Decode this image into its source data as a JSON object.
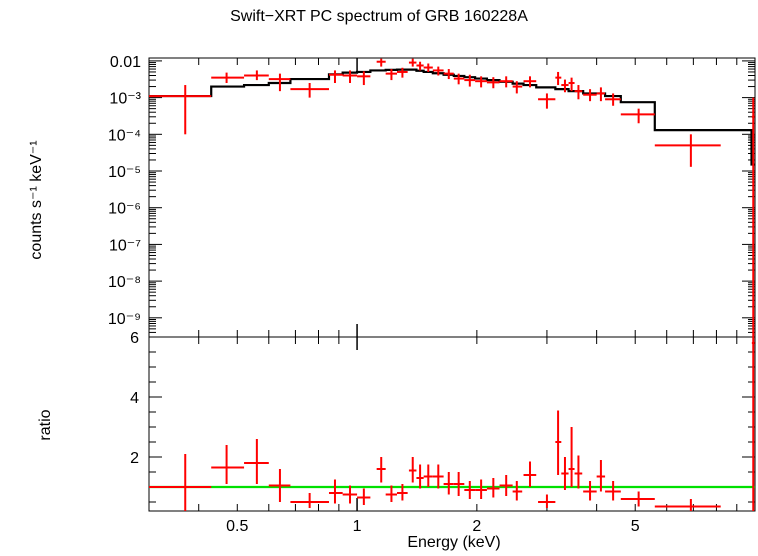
{
  "chart_data": [
    {
      "type": "scatter",
      "title": "Swift−XRT PC spectrum of GRB 160228A",
      "xlabel": "Energy (keV)",
      "ylabel": "counts s⁻¹ keV⁻¹",
      "xscale": "log",
      "yscale": "log",
      "xlim": [
        0.3,
        10
      ],
      "ylim": [
        3e-10,
        0.012
      ],
      "y_tick_labels": [
        {
          "v": 0.01,
          "t": "0.01"
        },
        {
          "v": 0.001,
          "t": "10⁻³"
        },
        {
          "v": 0.0001,
          "t": "10⁻⁴"
        },
        {
          "v": 1e-05,
          "t": "10⁻⁵"
        },
        {
          "v": 1e-06,
          "t": "10⁻⁶"
        },
        {
          "v": 1e-07,
          "t": "10⁻⁷"
        },
        {
          "v": 1e-08,
          "t": "10⁻⁸"
        },
        {
          "v": 1e-09,
          "t": "10⁻⁹"
        }
      ],
      "data_color": "#ff0000",
      "model_color": "#000000",
      "points": [
        {
          "x": 0.37,
          "xlo": 0.3,
          "xhi": 0.43,
          "y": 0.0011,
          "ylo": 0.0001,
          "yhi": 0.0022
        },
        {
          "x": 0.47,
          "xlo": 0.43,
          "xhi": 0.52,
          "y": 0.0035,
          "ylo": 0.0025,
          "yhi": 0.0048
        },
        {
          "x": 0.56,
          "xlo": 0.52,
          "xhi": 0.6,
          "y": 0.004,
          "ylo": 0.003,
          "yhi": 0.0055
        },
        {
          "x": 0.64,
          "xlo": 0.6,
          "xhi": 0.68,
          "y": 0.0032,
          "ylo": 0.0015,
          "yhi": 0.0045
        },
        {
          "x": 0.76,
          "xlo": 0.68,
          "xhi": 0.85,
          "y": 0.0017,
          "ylo": 0.001,
          "yhi": 0.0025
        },
        {
          "x": 0.88,
          "xlo": 0.85,
          "xhi": 0.92,
          "y": 0.0042,
          "ylo": 0.0025,
          "yhi": 0.0055
        },
        {
          "x": 0.96,
          "xlo": 0.92,
          "xhi": 1.0,
          "y": 0.004,
          "ylo": 0.0025,
          "yhi": 0.0055
        },
        {
          "x": 1.04,
          "xlo": 1.0,
          "xhi": 1.08,
          "y": 0.0038,
          "ylo": 0.0022,
          "yhi": 0.0052
        },
        {
          "x": 1.15,
          "xlo": 1.12,
          "xhi": 1.18,
          "y": 0.0095,
          "ylo": 0.007,
          "yhi": 0.0115
        },
        {
          "x": 1.22,
          "xlo": 1.18,
          "xhi": 1.26,
          "y": 0.0045,
          "ylo": 0.003,
          "yhi": 0.006
        },
        {
          "x": 1.3,
          "xlo": 1.26,
          "xhi": 1.34,
          "y": 0.005,
          "ylo": 0.0035,
          "yhi": 0.0065
        },
        {
          "x": 1.38,
          "xlo": 1.35,
          "xhi": 1.41,
          "y": 0.009,
          "ylo": 0.007,
          "yhi": 0.0115
        },
        {
          "x": 1.44,
          "xlo": 1.41,
          "xhi": 1.47,
          "y": 0.0075,
          "ylo": 0.0055,
          "yhi": 0.0095
        },
        {
          "x": 1.51,
          "xlo": 1.47,
          "xhi": 1.55,
          "y": 0.0066,
          "ylo": 0.005,
          "yhi": 0.0085
        },
        {
          "x": 1.6,
          "xlo": 1.55,
          "xhi": 1.65,
          "y": 0.0055,
          "ylo": 0.004,
          "yhi": 0.007
        },
        {
          "x": 1.7,
          "xlo": 1.65,
          "xhi": 1.75,
          "y": 0.0045,
          "ylo": 0.0032,
          "yhi": 0.006
        },
        {
          "x": 1.8,
          "xlo": 1.75,
          "xhi": 1.86,
          "y": 0.0033,
          "ylo": 0.0023,
          "yhi": 0.0045
        },
        {
          "x": 1.92,
          "xlo": 1.86,
          "xhi": 1.98,
          "y": 0.003,
          "ylo": 0.002,
          "yhi": 0.0042
        },
        {
          "x": 2.05,
          "xlo": 1.98,
          "xhi": 2.12,
          "y": 0.0028,
          "ylo": 0.0019,
          "yhi": 0.0038
        },
        {
          "x": 2.2,
          "xlo": 2.12,
          "xhi": 2.28,
          "y": 0.0026,
          "ylo": 0.0018,
          "yhi": 0.0036
        },
        {
          "x": 2.37,
          "xlo": 2.28,
          "xhi": 2.46,
          "y": 0.0028,
          "ylo": 0.0019,
          "yhi": 0.0038
        },
        {
          "x": 2.52,
          "xlo": 2.46,
          "xhi": 2.6,
          "y": 0.002,
          "ylo": 0.0013,
          "yhi": 0.0028
        },
        {
          "x": 2.72,
          "xlo": 2.62,
          "xhi": 2.82,
          "y": 0.0028,
          "ylo": 0.0019,
          "yhi": 0.0038
        },
        {
          "x": 3.0,
          "xlo": 2.85,
          "xhi": 3.15,
          "y": 0.0009,
          "ylo": 0.0005,
          "yhi": 0.0013
        },
        {
          "x": 3.2,
          "xlo": 3.15,
          "xhi": 3.26,
          "y": 0.0035,
          "ylo": 0.0022,
          "yhi": 0.005
        },
        {
          "x": 3.33,
          "xlo": 3.26,
          "xhi": 3.4,
          "y": 0.0022,
          "ylo": 0.0014,
          "yhi": 0.0031
        },
        {
          "x": 3.46,
          "xlo": 3.4,
          "xhi": 3.52,
          "y": 0.0025,
          "ylo": 0.0015,
          "yhi": 0.0035
        },
        {
          "x": 3.6,
          "xlo": 3.52,
          "xhi": 3.68,
          "y": 0.0015,
          "ylo": 0.0009,
          "yhi": 0.0022
        },
        {
          "x": 3.85,
          "xlo": 3.7,
          "xhi": 4.0,
          "y": 0.0012,
          "ylo": 0.0008,
          "yhi": 0.0017
        },
        {
          "x": 4.1,
          "xlo": 4.0,
          "xhi": 4.2,
          "y": 0.0013,
          "ylo": 0.0008,
          "yhi": 0.0019
        },
        {
          "x": 4.4,
          "xlo": 4.2,
          "xhi": 4.6,
          "y": 0.0009,
          "ylo": 0.0006,
          "yhi": 0.0013
        },
        {
          "x": 5.1,
          "xlo": 4.6,
          "xhi": 5.6,
          "y": 0.00035,
          "ylo": 0.0002,
          "yhi": 0.0005
        },
        {
          "x": 6.9,
          "xlo": 5.6,
          "xhi": 8.2,
          "y": 5e-05,
          "ylo": 1.3e-05,
          "yhi": 0.0001
        },
        {
          "x": 9.9,
          "xlo": 9.82,
          "xhi": 9.98,
          "y": 0.0003,
          "ylo": 3e-10,
          "yhi": 0.001
        }
      ],
      "model_steps": [
        {
          "x0": 0.3,
          "x1": 0.43,
          "y": 0.0011
        },
        {
          "x0": 0.43,
          "x1": 0.52,
          "y": 0.002
        },
        {
          "x0": 0.52,
          "x1": 0.6,
          "y": 0.0022
        },
        {
          "x0": 0.6,
          "x1": 0.68,
          "y": 0.0025
        },
        {
          "x0": 0.68,
          "x1": 0.85,
          "y": 0.0032
        },
        {
          "x0": 0.85,
          "x1": 0.92,
          "y": 0.0043
        },
        {
          "x0": 0.92,
          "x1": 1.0,
          "y": 0.0048
        },
        {
          "x0": 1.0,
          "x1": 1.08,
          "y": 0.005
        },
        {
          "x0": 1.08,
          "x1": 1.18,
          "y": 0.0055
        },
        {
          "x0": 1.18,
          "x1": 1.26,
          "y": 0.0057
        },
        {
          "x0": 1.26,
          "x1": 1.34,
          "y": 0.0058
        },
        {
          "x0": 1.34,
          "x1": 1.41,
          "y": 0.0058
        },
        {
          "x0": 1.41,
          "x1": 1.47,
          "y": 0.0054
        },
        {
          "x0": 1.47,
          "x1": 1.55,
          "y": 0.005
        },
        {
          "x0": 1.55,
          "x1": 1.65,
          "y": 0.0046
        },
        {
          "x0": 1.65,
          "x1": 1.75,
          "y": 0.0042
        },
        {
          "x0": 1.75,
          "x1": 1.86,
          "y": 0.0039
        },
        {
          "x0": 1.86,
          "x1": 1.98,
          "y": 0.0036
        },
        {
          "x0": 1.98,
          "x1": 2.12,
          "y": 0.0033
        },
        {
          "x0": 2.12,
          "x1": 2.28,
          "y": 0.003
        },
        {
          "x0": 2.28,
          "x1": 2.46,
          "y": 0.0027
        },
        {
          "x0": 2.46,
          "x1": 2.62,
          "y": 0.0024
        },
        {
          "x0": 2.62,
          "x1": 2.82,
          "y": 0.0022
        },
        {
          "x0": 2.82,
          "x1": 3.15,
          "y": 0.0019
        },
        {
          "x0": 3.15,
          "x1": 3.4,
          "y": 0.0017
        },
        {
          "x0": 3.4,
          "x1": 3.7,
          "y": 0.0015
        },
        {
          "x0": 3.7,
          "x1": 4.2,
          "y": 0.0013
        },
        {
          "x0": 4.2,
          "x1": 4.6,
          "y": 0.0011
        },
        {
          "x0": 4.6,
          "x1": 5.6,
          "y": 0.00075
        },
        {
          "x0": 5.6,
          "x1": 9.8,
          "y": 0.00013
        },
        {
          "x0": 9.8,
          "x1": 10.0,
          "y": 1.5e-05
        }
      ]
    },
    {
      "type": "scatter",
      "xlabel": "Energy (keV)",
      "ylabel": "ratio",
      "xscale": "log",
      "yscale": "linear",
      "xlim": [
        0.3,
        10
      ],
      "ylim": [
        0.2,
        6
      ],
      "y_tick_labels": [
        {
          "v": 6,
          "t": "6"
        },
        {
          "v": 4,
          "t": "4"
        },
        {
          "v": 2,
          "t": "2"
        }
      ],
      "x_tick_labels": [
        {
          "v": 0.5,
          "t": "0.5"
        },
        {
          "v": 1,
          "t": "1"
        },
        {
          "v": 2,
          "t": "2"
        },
        {
          "v": 5,
          "t": "5"
        }
      ],
      "reference_line": {
        "y": 1,
        "color": "#00e000"
      },
      "data_color": "#ff0000",
      "points": [
        {
          "x": 0.37,
          "xlo": 0.3,
          "xhi": 0.43,
          "y": 1.0,
          "ylo": 0.2,
          "yhi": 2.1
        },
        {
          "x": 0.47,
          "xlo": 0.43,
          "xhi": 0.52,
          "y": 1.65,
          "ylo": 1.1,
          "yhi": 2.4
        },
        {
          "x": 0.56,
          "xlo": 0.52,
          "xhi": 0.6,
          "y": 1.8,
          "ylo": 1.1,
          "yhi": 2.6
        },
        {
          "x": 0.64,
          "xlo": 0.6,
          "xhi": 0.68,
          "y": 1.05,
          "ylo": 0.5,
          "yhi": 1.6
        },
        {
          "x": 0.76,
          "xlo": 0.68,
          "xhi": 0.85,
          "y": 0.5,
          "ylo": 0.3,
          "yhi": 0.8
        },
        {
          "x": 0.88,
          "xlo": 0.85,
          "xhi": 0.92,
          "y": 0.8,
          "ylo": 0.45,
          "yhi": 1.25
        },
        {
          "x": 0.96,
          "xlo": 0.92,
          "xhi": 1.0,
          "y": 0.75,
          "ylo": 0.45,
          "yhi": 1.05
        },
        {
          "x": 1.04,
          "xlo": 1.0,
          "xhi": 1.08,
          "y": 0.65,
          "ylo": 0.4,
          "yhi": 0.95
        },
        {
          "x": 1.15,
          "xlo": 1.12,
          "xhi": 1.18,
          "y": 1.6,
          "ylo": 1.15,
          "yhi": 2.0
        },
        {
          "x": 1.22,
          "xlo": 1.18,
          "xhi": 1.26,
          "y": 0.75,
          "ylo": 0.5,
          "yhi": 1.05
        },
        {
          "x": 1.3,
          "xlo": 1.26,
          "xhi": 1.34,
          "y": 0.8,
          "ylo": 0.55,
          "yhi": 1.1
        },
        {
          "x": 1.38,
          "xlo": 1.35,
          "xhi": 1.41,
          "y": 1.55,
          "ylo": 1.15,
          "yhi": 2.0
        },
        {
          "x": 1.44,
          "xlo": 1.41,
          "xhi": 1.47,
          "y": 1.3,
          "ylo": 0.95,
          "yhi": 1.75
        },
        {
          "x": 1.51,
          "xlo": 1.47,
          "xhi": 1.55,
          "y": 1.35,
          "ylo": 1.0,
          "yhi": 1.75
        },
        {
          "x": 1.6,
          "xlo": 1.55,
          "xhi": 1.65,
          "y": 1.35,
          "ylo": 0.95,
          "yhi": 1.75
        },
        {
          "x": 1.7,
          "xlo": 1.65,
          "xhi": 1.75,
          "y": 1.1,
          "ylo": 0.75,
          "yhi": 1.5
        },
        {
          "x": 1.8,
          "xlo": 1.75,
          "xhi": 1.86,
          "y": 1.1,
          "ylo": 0.7,
          "yhi": 1.5
        },
        {
          "x": 1.92,
          "xlo": 1.86,
          "xhi": 1.98,
          "y": 0.9,
          "ylo": 0.6,
          "yhi": 1.2
        },
        {
          "x": 2.05,
          "xlo": 1.98,
          "xhi": 2.12,
          "y": 0.9,
          "ylo": 0.6,
          "yhi": 1.25
        },
        {
          "x": 2.2,
          "xlo": 2.12,
          "xhi": 2.28,
          "y": 0.95,
          "ylo": 0.65,
          "yhi": 1.3
        },
        {
          "x": 2.37,
          "xlo": 2.28,
          "xhi": 2.46,
          "y": 1.05,
          "ylo": 0.7,
          "yhi": 1.4
        },
        {
          "x": 2.52,
          "xlo": 2.46,
          "xhi": 2.6,
          "y": 0.85,
          "ylo": 0.55,
          "yhi": 1.2
        },
        {
          "x": 2.72,
          "xlo": 2.62,
          "xhi": 2.82,
          "y": 1.4,
          "ylo": 1.0,
          "yhi": 1.85
        },
        {
          "x": 3.0,
          "xlo": 2.85,
          "xhi": 3.15,
          "y": 0.5,
          "ylo": 0.3,
          "yhi": 0.75
        },
        {
          "x": 3.2,
          "xlo": 3.15,
          "xhi": 3.26,
          "y": 2.5,
          "ylo": 1.4,
          "yhi": 3.55
        },
        {
          "x": 3.33,
          "xlo": 3.26,
          "xhi": 3.4,
          "y": 1.45,
          "ylo": 0.9,
          "yhi": 2.0
        },
        {
          "x": 3.46,
          "xlo": 3.4,
          "xhi": 3.52,
          "y": 1.6,
          "ylo": 1.0,
          "yhi": 3.0
        },
        {
          "x": 3.6,
          "xlo": 3.52,
          "xhi": 3.68,
          "y": 1.45,
          "ylo": 0.95,
          "yhi": 2.05
        },
        {
          "x": 3.85,
          "xlo": 3.7,
          "xhi": 4.0,
          "y": 0.85,
          "ylo": 0.55,
          "yhi": 1.2
        },
        {
          "x": 4.1,
          "xlo": 4.0,
          "xhi": 4.2,
          "y": 1.35,
          "ylo": 0.85,
          "yhi": 1.9
        },
        {
          "x": 4.4,
          "xlo": 4.2,
          "xhi": 4.6,
          "y": 0.85,
          "ylo": 0.55,
          "yhi": 1.2
        },
        {
          "x": 5.1,
          "xlo": 4.6,
          "xhi": 5.6,
          "y": 0.6,
          "ylo": 0.35,
          "yhi": 0.85
        },
        {
          "x": 6.9,
          "xlo": 5.6,
          "xhi": 8.2,
          "y": 0.35,
          "ylo": 0.2,
          "yhi": 0.6
        },
        {
          "x": 9.9,
          "xlo": 9.82,
          "xhi": 9.98,
          "y": 5.8,
          "ylo": 0.2,
          "yhi": 6.0
        }
      ]
    }
  ]
}
